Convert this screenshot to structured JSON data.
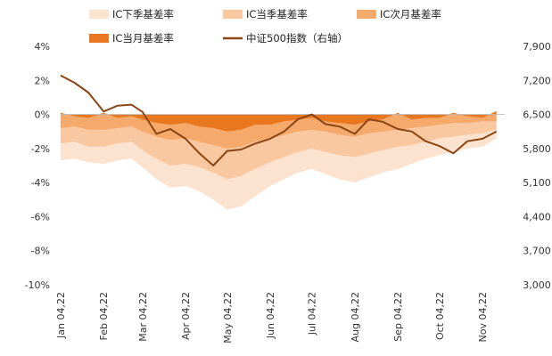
{
  "chart_data": {
    "type": "area",
    "title": "",
    "xlabel": "",
    "ylabel": "",
    "legend_position": "top",
    "grid": false,
    "x_tick_labels": [
      "Jan 04,22",
      "Feb 04,22",
      "Mar 04,22",
      "Apr 04,22",
      "May 04,22",
      "Jun 04,22",
      "Jul 04,22",
      "Aug 04,22",
      "Sep 04,22",
      "Oct 04,22",
      "Nov 04,22"
    ],
    "y_left": {
      "ylim": [
        -10,
        4
      ],
      "ticks": [
        4,
        2,
        0,
        -2,
        -4,
        -6,
        -8,
        -10
      ],
      "unit": "%"
    },
    "y_right": {
      "ylim": [
        3000,
        7900
      ],
      "ticks": [
        "7,900",
        "7,200",
        "6,500",
        "5,800",
        "5,100",
        "4,400",
        "3,700",
        "3,000"
      ]
    },
    "colors": {
      "IC下季基差率": "#fbe3cf",
      "IC当季基差率": "#f9c8a0",
      "IC次月基差率": "#f5a96a",
      "IC当月基差率": "#e8781f",
      "中证500指数": "#8b4513"
    },
    "legend": [
      "IC下季基差率",
      "IC当季基差率",
      "IC次月基差率",
      "IC当月基差率",
      "中证500指数（右轴）"
    ],
    "x": [
      "2022-01-04",
      "2022-01-14",
      "2022-01-24",
      "2022-02-04",
      "2022-02-14",
      "2022-02-24",
      "2022-03-04",
      "2022-03-14",
      "2022-03-24",
      "2022-04-04",
      "2022-04-14",
      "2022-04-24",
      "2022-05-04",
      "2022-05-14",
      "2022-05-24",
      "2022-06-04",
      "2022-06-14",
      "2022-06-24",
      "2022-07-04",
      "2022-07-14",
      "2022-07-24",
      "2022-08-04",
      "2022-08-14",
      "2022-08-24",
      "2022-09-04",
      "2022-09-14",
      "2022-09-24",
      "2022-10-04",
      "2022-10-14",
      "2022-10-24",
      "2022-11-04",
      "2022-11-14"
    ],
    "series": [
      {
        "name": "IC下季基差率",
        "axis": "left",
        "values": [
          -2.7,
          -2.6,
          -2.8,
          -2.9,
          -2.7,
          -2.6,
          -3.1,
          -3.8,
          -4.3,
          -4.2,
          -4.5,
          -5.0,
          -5.6,
          -5.4,
          -4.8,
          -4.2,
          -3.8,
          -3.4,
          -3.2,
          -3.5,
          -3.8,
          -4.0,
          -3.7,
          -3.4,
          -3.2,
          -2.9,
          -2.6,
          -2.4,
          -2.2,
          -2.0,
          -1.9,
          -1.4
        ]
      },
      {
        "name": "IC当季基差率",
        "axis": "left",
        "values": [
          -1.7,
          -1.6,
          -1.9,
          -1.9,
          -1.7,
          -1.6,
          -2.1,
          -2.6,
          -3.0,
          -2.9,
          -3.1,
          -3.4,
          -3.8,
          -3.6,
          -3.2,
          -2.8,
          -2.5,
          -2.2,
          -2.0,
          -2.2,
          -2.4,
          -2.5,
          -2.3,
          -2.1,
          -1.9,
          -1.8,
          -1.6,
          -1.4,
          -1.3,
          -1.2,
          -1.1,
          -0.9
        ]
      },
      {
        "name": "IC次月基差率",
        "axis": "left",
        "values": [
          -0.8,
          -0.7,
          -0.9,
          -0.9,
          -0.8,
          -0.7,
          -1.0,
          -1.3,
          -1.5,
          -1.4,
          -1.6,
          -1.8,
          -2.0,
          -1.9,
          -1.6,
          -1.4,
          -1.2,
          -1.0,
          -0.9,
          -1.0,
          -1.2,
          -1.3,
          -1.1,
          -1.0,
          -0.9,
          -0.8,
          -0.7,
          -0.6,
          -0.5,
          -0.5,
          -0.4,
          -0.4
        ]
      },
      {
        "name": "IC当月基差率",
        "axis": "left",
        "values": [
          0.1,
          -0.1,
          -0.2,
          0.1,
          -0.2,
          -0.1,
          -0.3,
          -0.5,
          -0.6,
          -0.5,
          -0.7,
          -0.8,
          -1.0,
          -0.9,
          -0.6,
          -0.6,
          -0.4,
          -0.3,
          -0.2,
          -0.4,
          -0.5,
          -0.6,
          -0.4,
          -0.3,
          0.1,
          -0.3,
          -0.2,
          -0.2,
          0.1,
          -0.1,
          -0.2,
          0.2
        ]
      },
      {
        "name": "中证500指数（右轴）",
        "axis": "right",
        "values": [
          7300,
          7150,
          6950,
          6560,
          6680,
          6700,
          6550,
          6100,
          6200,
          6000,
          5700,
          5450,
          5750,
          5780,
          5900,
          6000,
          6150,
          6400,
          6500,
          6300,
          6250,
          6100,
          6400,
          6350,
          6200,
          6150,
          5950,
          5850,
          5700,
          5950,
          6000,
          6150
        ]
      }
    ]
  }
}
